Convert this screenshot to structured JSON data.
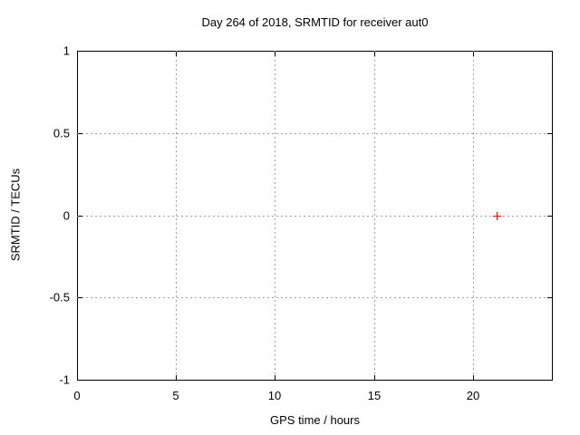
{
  "chart_data": {
    "type": "scatter",
    "title": "Day 264 of 2018, SRMTID for receiver aut0",
    "xlabel": "GPS time / hours",
    "ylabel": "SRMTID / TECUs",
    "xlim": [
      0,
      24
    ],
    "ylim": [
      -1,
      1
    ],
    "xticks": [
      0,
      5,
      10,
      15,
      20
    ],
    "yticks": [
      -1,
      -0.5,
      0,
      0.5,
      1
    ],
    "grid": true,
    "grid_style": "dotted",
    "legend": "none",
    "series": [
      {
        "name": "SRMTID",
        "marker": "plus",
        "color": "#ff0000",
        "x": [
          21.2
        ],
        "y": [
          0.0
        ]
      }
    ],
    "colors": {
      "background": "#ffffff",
      "border": "#000000",
      "grid": "#a0a0a0",
      "text": "#000000"
    }
  }
}
